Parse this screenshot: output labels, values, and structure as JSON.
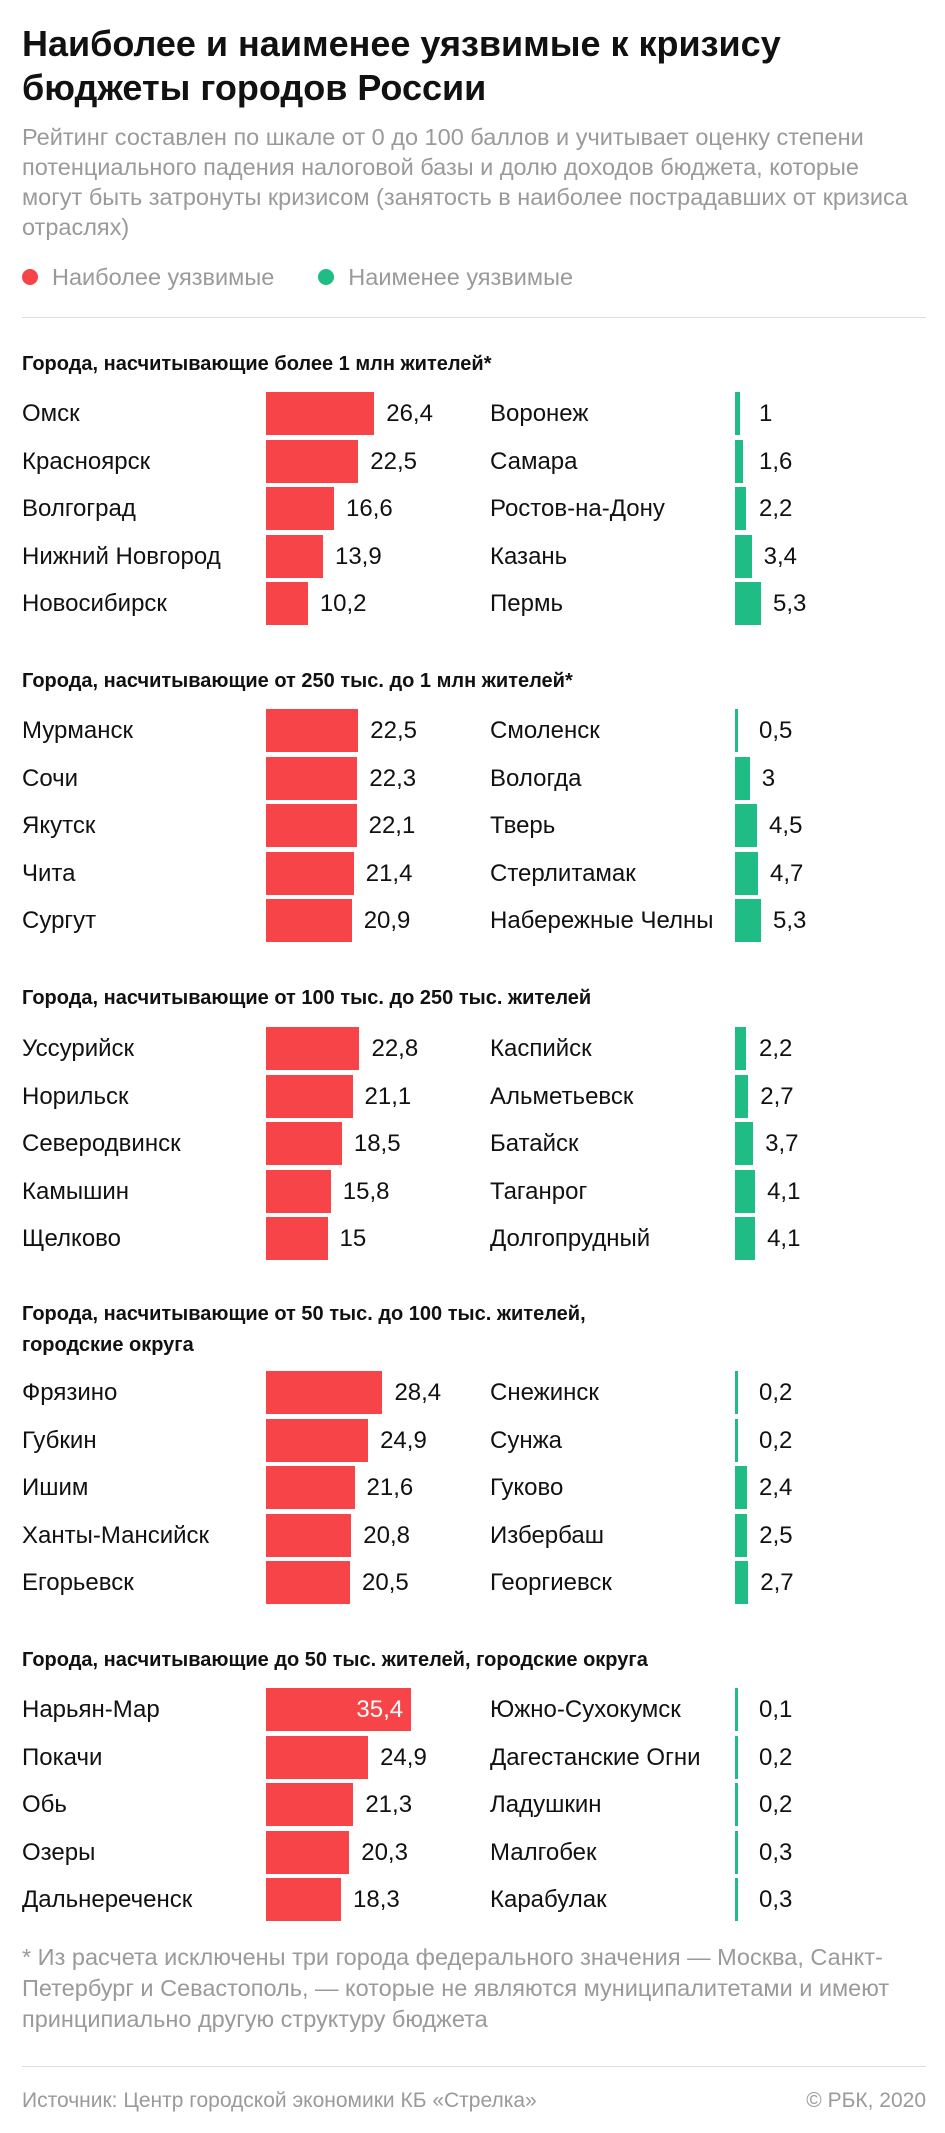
{
  "header": {
    "title": "Наиболее и наименее уязвимые к кризису бюджеты городов России",
    "subtitle": "Рейтинг составлен по шкале от 0 до 100 баллов и учитывает оценку степени потенциального падения налоговой базы и долю доходов бюджета, которые могут быть затронуты кризисом (занятость в наиболее пострадавших от кризиса отраслях)"
  },
  "legend": {
    "most": "Наиболее уязвимые",
    "least": "Наименее уязвимые"
  },
  "colors": {
    "most": "#f74448",
    "least": "#1fbd85",
    "text": "#111111",
    "muted": "#9a9a9a"
  },
  "chart_data": {
    "type": "bar",
    "orientation": "horizontal",
    "title": "Наиболее и наименее уязвимые к кризису бюджеты городов России",
    "scale": [
      0,
      100
    ],
    "groups": [
      {
        "title": "Города, насчитывающие более 1 млн жителей*",
        "most": [
          {
            "city": "Омск",
            "value": 26.4,
            "label": "26,4"
          },
          {
            "city": "Красноярск",
            "value": 22.5,
            "label": "22,5"
          },
          {
            "city": "Волгоград",
            "value": 16.6,
            "label": "16,6"
          },
          {
            "city": "Нижний Новгород",
            "value": 13.9,
            "label": "13,9"
          },
          {
            "city": "Новосибирск",
            "value": 10.2,
            "label": "10,2"
          }
        ],
        "least": [
          {
            "city": "Воронеж",
            "value": 1,
            "label": "1"
          },
          {
            "city": "Самара",
            "value": 1.6,
            "label": "1,6"
          },
          {
            "city": "Ростов-на-Дону",
            "value": 2.2,
            "label": "2,2"
          },
          {
            "city": "Казань",
            "value": 3.4,
            "label": "3,4"
          },
          {
            "city": "Пермь",
            "value": 5.3,
            "label": "5,3"
          }
        ]
      },
      {
        "title": "Города, насчитывающие от 250 тыс. до 1 млн жителей*",
        "most": [
          {
            "city": "Мурманск",
            "value": 22.5,
            "label": "22,5"
          },
          {
            "city": "Сочи",
            "value": 22.3,
            "label": "22,3"
          },
          {
            "city": "Якутск",
            "value": 22.1,
            "label": "22,1"
          },
          {
            "city": "Чита",
            "value": 21.4,
            "label": "21,4"
          },
          {
            "city": "Сургут",
            "value": 20.9,
            "label": "20,9"
          }
        ],
        "least": [
          {
            "city": "Смоленск",
            "value": 0.5,
            "label": "0,5"
          },
          {
            "city": "Вологда",
            "value": 3,
            "label": "3"
          },
          {
            "city": "Тверь",
            "value": 4.5,
            "label": "4,5"
          },
          {
            "city": "Стерлитамак",
            "value": 4.7,
            "label": "4,7"
          },
          {
            "city": "Набережные Челны",
            "value": 5.3,
            "label": "5,3"
          }
        ]
      },
      {
        "title": "Города, насчитывающие от 100 тыс. до 250 тыс. жителей",
        "most": [
          {
            "city": "Уссурийск",
            "value": 22.8,
            "label": "22,8"
          },
          {
            "city": "Норильск",
            "value": 21.1,
            "label": "21,1"
          },
          {
            "city": "Северодвинск",
            "value": 18.5,
            "label": "18,5"
          },
          {
            "city": "Камышин",
            "value": 15.8,
            "label": "15,8"
          },
          {
            "city": "Щелково",
            "value": 15,
            "label": "15"
          }
        ],
        "least": [
          {
            "city": "Каспийск",
            "value": 2.2,
            "label": "2,2"
          },
          {
            "city": "Альметьевск",
            "value": 2.7,
            "label": "2,7"
          },
          {
            "city": "Батайск",
            "value": 3.7,
            "label": "3,7"
          },
          {
            "city": "Таганрог",
            "value": 4.1,
            "label": "4,1"
          },
          {
            "city": "Долгопрудный",
            "value": 4.1,
            "label": "4,1"
          }
        ]
      },
      {
        "title": "Города, насчитывающие от 50 тыс. до 100 тыс. жителей, городские округа",
        "most": [
          {
            "city": "Фрязино",
            "value": 28.4,
            "label": "28,4"
          },
          {
            "city": "Губкин",
            "value": 24.9,
            "label": "24,9"
          },
          {
            "city": "Ишим",
            "value": 21.6,
            "label": "21,6"
          },
          {
            "city": "Ханты-Мансийск",
            "value": 20.8,
            "label": "20,8"
          },
          {
            "city": "Егорьевск",
            "value": 20.5,
            "label": "20,5"
          }
        ],
        "least": [
          {
            "city": "Снежинск",
            "value": 0.2,
            "label": "0,2"
          },
          {
            "city": "Сунжа",
            "value": 0.2,
            "label": "0,2"
          },
          {
            "city": "Гуково",
            "value": 2.4,
            "label": "2,4"
          },
          {
            "city": "Избербаш",
            "value": 2.5,
            "label": "2,5"
          },
          {
            "city": "Георгиевск",
            "value": 2.7,
            "label": "2,7"
          }
        ]
      },
      {
        "title": "Города, насчитывающие до 50 тыс. жителей, городские округа",
        "most": [
          {
            "city": "Нарьян-Мар",
            "value": 35.4,
            "label": "35,4"
          },
          {
            "city": "Покачи",
            "value": 24.9,
            "label": "24,9"
          },
          {
            "city": "Обь",
            "value": 21.3,
            "label": "21,3"
          },
          {
            "city": "Озеры",
            "value": 20.3,
            "label": "20,3"
          },
          {
            "city": "Дальнереченск",
            "value": 18.3,
            "label": "18,3"
          }
        ],
        "least": [
          {
            "city": "Южно-Сухокумск",
            "value": 0.1,
            "label": "0,1"
          },
          {
            "city": "Дагестанские Огни",
            "value": 0.2,
            "label": "0,2"
          },
          {
            "city": "Ладушкин",
            "value": 0.2,
            "label": "0,2"
          },
          {
            "city": "Малгобек",
            "value": 0.3,
            "label": "0,3"
          },
          {
            "city": "Карабулак",
            "value": 0.3,
            "label": "0,3"
          }
        ]
      }
    ]
  },
  "footer": {
    "footnote": "* Из расчета исключены три города федерального значения — Москва, Санкт-Петербург и Севастополь, — которые не являются муниципалитетами и имеют принципиально другую структуру бюджета",
    "source": "Источник: Центр городской экономики КБ «Стрелка»",
    "copyright": "© РБК, 2020"
  }
}
